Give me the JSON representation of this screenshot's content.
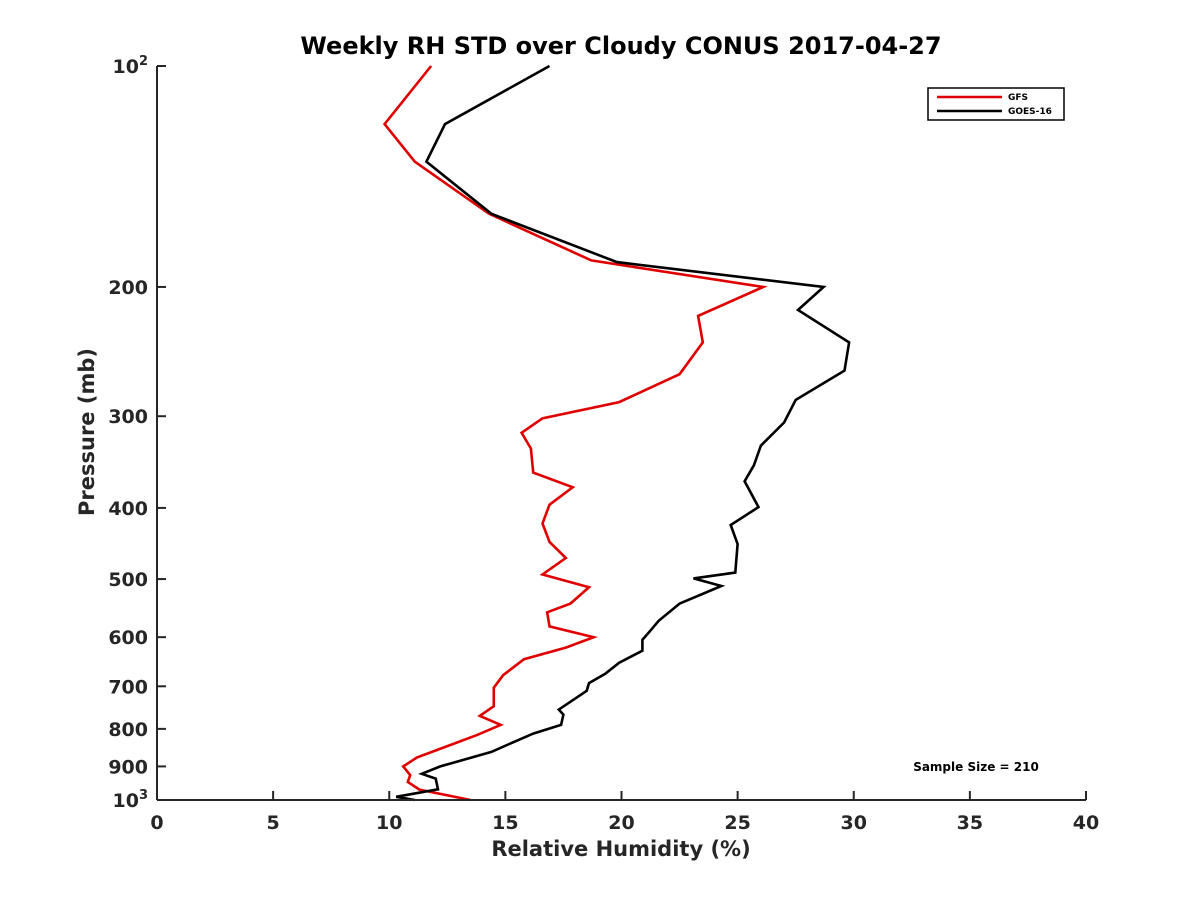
{
  "chart_data": {
    "type": "line",
    "title": "Weekly RH STD over Cloudy CONUS 2017-04-27",
    "xlabel": "Relative Humidity (%)",
    "ylabel": "Pressure (mb)",
    "xlim": [
      0,
      40
    ],
    "ylim": [
      100,
      1000
    ],
    "y_scale": "log",
    "y_reversed": true,
    "x_ticks": [
      0,
      5,
      10,
      15,
      20,
      25,
      30,
      35,
      40
    ],
    "x_tick_labels": [
      "0",
      "5",
      "10",
      "15",
      "20",
      "25",
      "30",
      "35",
      "40"
    ],
    "y_ticks": [
      100,
      200,
      300,
      400,
      500,
      600,
      700,
      800,
      900,
      1000
    ],
    "y_tick_labels": [
      {
        "base": "10",
        "exp": "2"
      },
      {
        "base": "200",
        "exp": ""
      },
      {
        "base": "300",
        "exp": ""
      },
      {
        "base": "400",
        "exp": ""
      },
      {
        "base": "500",
        "exp": ""
      },
      {
        "base": "600",
        "exp": ""
      },
      {
        "base": "700",
        "exp": ""
      },
      {
        "base": "800",
        "exp": ""
      },
      {
        "base": "900",
        "exp": ""
      },
      {
        "base": "10",
        "exp": "3"
      }
    ],
    "grid": false,
    "legend_position": "top-right",
    "annotation": "Sample Size = 210",
    "series": [
      {
        "name": "GFS",
        "color": "#e00000",
        "x": [
          11.8,
          9.8,
          11.1,
          14.3,
          18.7,
          26.1,
          23.3,
          23.5,
          22.5,
          19.9,
          16.6,
          15.7,
          16.1,
          16.2,
          17.9,
          16.9,
          16.6,
          16.9,
          17.6,
          16.6,
          18.6,
          17.8,
          16.8,
          16.9,
          18.8,
          17.6,
          15.8,
          14.9,
          14.5,
          14.5,
          13.9,
          14.8,
          13.8,
          12.7,
          11.2,
          10.6,
          10.9,
          10.8,
          11.3,
          13.5
        ],
        "y": [
          100,
          120,
          135,
          159,
          184,
          200,
          219,
          238,
          263,
          287,
          302,
          316,
          332,
          358,
          375,
          396,
          420,
          445,
          468,
          493,
          513,
          540,
          555,
          580,
          600,
          620,
          643,
          676,
          703,
          745,
          768,
          790,
          815,
          840,
          875,
          900,
          925,
          945,
          968,
          1000
        ]
      },
      {
        "name": "GOES-16",
        "color": "#000000",
        "x": [
          16.9,
          12.4,
          11.6,
          14.4,
          19.8,
          28.7,
          27.6,
          29.8,
          29.6,
          27.5,
          27.0,
          26.0,
          25.7,
          25.3,
          25.9,
          24.7,
          25.0,
          24.9,
          23.1,
          24.3,
          22.5,
          21.6,
          21.2,
          20.9,
          20.9,
          19.9,
          19.3,
          18.6,
          18.5,
          17.3,
          17.5,
          17.4,
          16.2,
          15.2,
          14.4,
          12.2,
          11.4,
          12.0,
          12.1,
          10.3,
          11.1
        ],
        "y": [
          100,
          120,
          135,
          159,
          185,
          200,
          215,
          238,
          260,
          285,
          306,
          329,
          350,
          368,
          399,
          422,
          448,
          490,
          499,
          511,
          540,
          570,
          590,
          605,
          626,
          650,
          673,
          693,
          710,
          753,
          765,
          790,
          812,
          838,
          860,
          900,
          921,
          935,
          967,
          990,
          1000
        ]
      }
    ]
  }
}
